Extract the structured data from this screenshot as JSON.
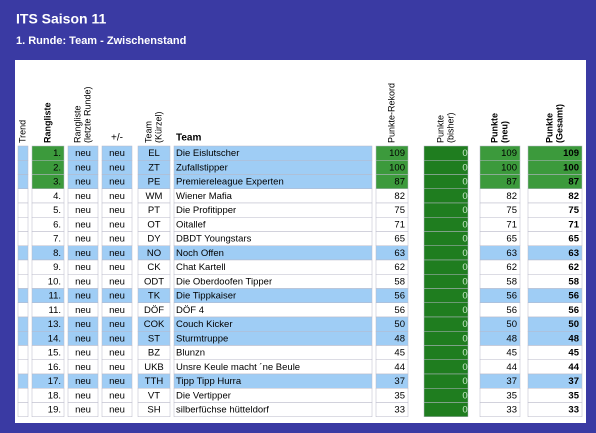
{
  "header": {
    "title": "ITS Saison 11",
    "subtitle": "1. Runde: Team - Zwischenstand"
  },
  "table": {
    "columns": [
      {
        "lines": [
          "Trend"
        ],
        "rotated": true,
        "bold": false
      },
      {
        "lines": [
          "Rangliste"
        ],
        "rotated": true,
        "bold": true
      },
      {
        "lines": [
          "Rangliste",
          "(letzte Runde)"
        ],
        "rotated": true,
        "bold": false
      },
      {
        "lines": [
          "+/-"
        ],
        "rotated": false,
        "bold": false
      },
      {
        "lines": [
          "Team",
          "(Kürzel)"
        ],
        "rotated": true,
        "bold": false
      },
      {
        "lines": [
          "Team"
        ],
        "rotated": false,
        "bold": true
      },
      {
        "lines": [
          "Punkte-Rekord"
        ],
        "rotated": true,
        "bold": false
      },
      {
        "lines": [
          "Punkte",
          "(bisher)"
        ],
        "rotated": true,
        "bold": false
      },
      {
        "lines": [
          "Punkte",
          "(neu)"
        ],
        "rotated": true,
        "bold": true
      },
      {
        "lines": [
          "Punkte",
          "(Gesamt)"
        ],
        "rotated": true,
        "bold": true
      }
    ],
    "rows": [
      {
        "highlight": true,
        "cells": [
          "",
          "1.",
          "neu",
          "neu",
          "EL",
          "Die Eislutscher",
          109,
          0,
          109,
          109
        ]
      },
      {
        "highlight": true,
        "cells": [
          "",
          "2.",
          "neu",
          "neu",
          "ZT",
          "Zufallstipper",
          100,
          0,
          100,
          100
        ]
      },
      {
        "highlight": true,
        "cells": [
          "",
          "3.",
          "neu",
          "neu",
          "PE",
          "Premiereleague Experten",
          87,
          0,
          87,
          87
        ]
      },
      {
        "highlight": false,
        "cells": [
          "",
          "4.",
          "neu",
          "neu",
          "WM",
          "Wiener Mafia",
          82,
          0,
          82,
          82
        ]
      },
      {
        "highlight": false,
        "cells": [
          "",
          "5.",
          "neu",
          "neu",
          "PT",
          "Die Profitipper",
          75,
          0,
          75,
          75
        ]
      },
      {
        "highlight": false,
        "cells": [
          "",
          "6.",
          "neu",
          "neu",
          "OT",
          "Oitallef",
          71,
          0,
          71,
          71
        ]
      },
      {
        "highlight": false,
        "cells": [
          "",
          "7.",
          "neu",
          "neu",
          "DY",
          "DBDT Youngstars",
          65,
          0,
          65,
          65
        ]
      },
      {
        "highlight": true,
        "cells": [
          "",
          "8.",
          "neu",
          "neu",
          "NO",
          "Noch Offen",
          63,
          0,
          63,
          63
        ]
      },
      {
        "highlight": false,
        "cells": [
          "",
          "9.",
          "neu",
          "neu",
          "CK",
          "Chat Kartell",
          62,
          0,
          62,
          62
        ]
      },
      {
        "highlight": false,
        "cells": [
          "",
          "10.",
          "neu",
          "neu",
          "ODT",
          "Die Oberdoofen Tipper",
          58,
          0,
          58,
          58
        ]
      },
      {
        "highlight": true,
        "cells": [
          "",
          "11.",
          "neu",
          "neu",
          "TK",
          "Die Tippkaiser",
          56,
          0,
          56,
          56
        ]
      },
      {
        "highlight": false,
        "cells": [
          "",
          "11.",
          "neu",
          "neu",
          "DÖF",
          "DÖF 4",
          56,
          0,
          56,
          56
        ]
      },
      {
        "highlight": true,
        "cells": [
          "",
          "13.",
          "neu",
          "neu",
          "COK",
          "Couch Kicker",
          50,
          0,
          50,
          50
        ]
      },
      {
        "highlight": true,
        "cells": [
          "",
          "14.",
          "neu",
          "neu",
          "ST",
          "Sturmtruppe",
          48,
          0,
          48,
          48
        ]
      },
      {
        "highlight": false,
        "cells": [
          "",
          "15.",
          "neu",
          "neu",
          "BZ",
          "Blunzn",
          45,
          0,
          45,
          45
        ]
      },
      {
        "highlight": false,
        "cells": [
          "",
          "16.",
          "neu",
          "neu",
          "UKB",
          "Unsre Keule macht ´ne Beule",
          44,
          0,
          44,
          44
        ]
      },
      {
        "highlight": true,
        "cells": [
          "",
          "17.",
          "neu",
          "neu",
          "TTH",
          "Tipp Tipp Hurra",
          37,
          0,
          37,
          37
        ]
      },
      {
        "highlight": false,
        "cells": [
          "",
          "18.",
          "neu",
          "neu",
          "VT",
          "Die Vertipper",
          35,
          0,
          35,
          35
        ]
      },
      {
        "highlight": false,
        "cells": [
          "",
          "19.",
          "neu",
          "neu",
          "SH",
          "silberfüchse hütteldorf",
          33,
          0,
          33,
          33
        ]
      }
    ]
  }
}
